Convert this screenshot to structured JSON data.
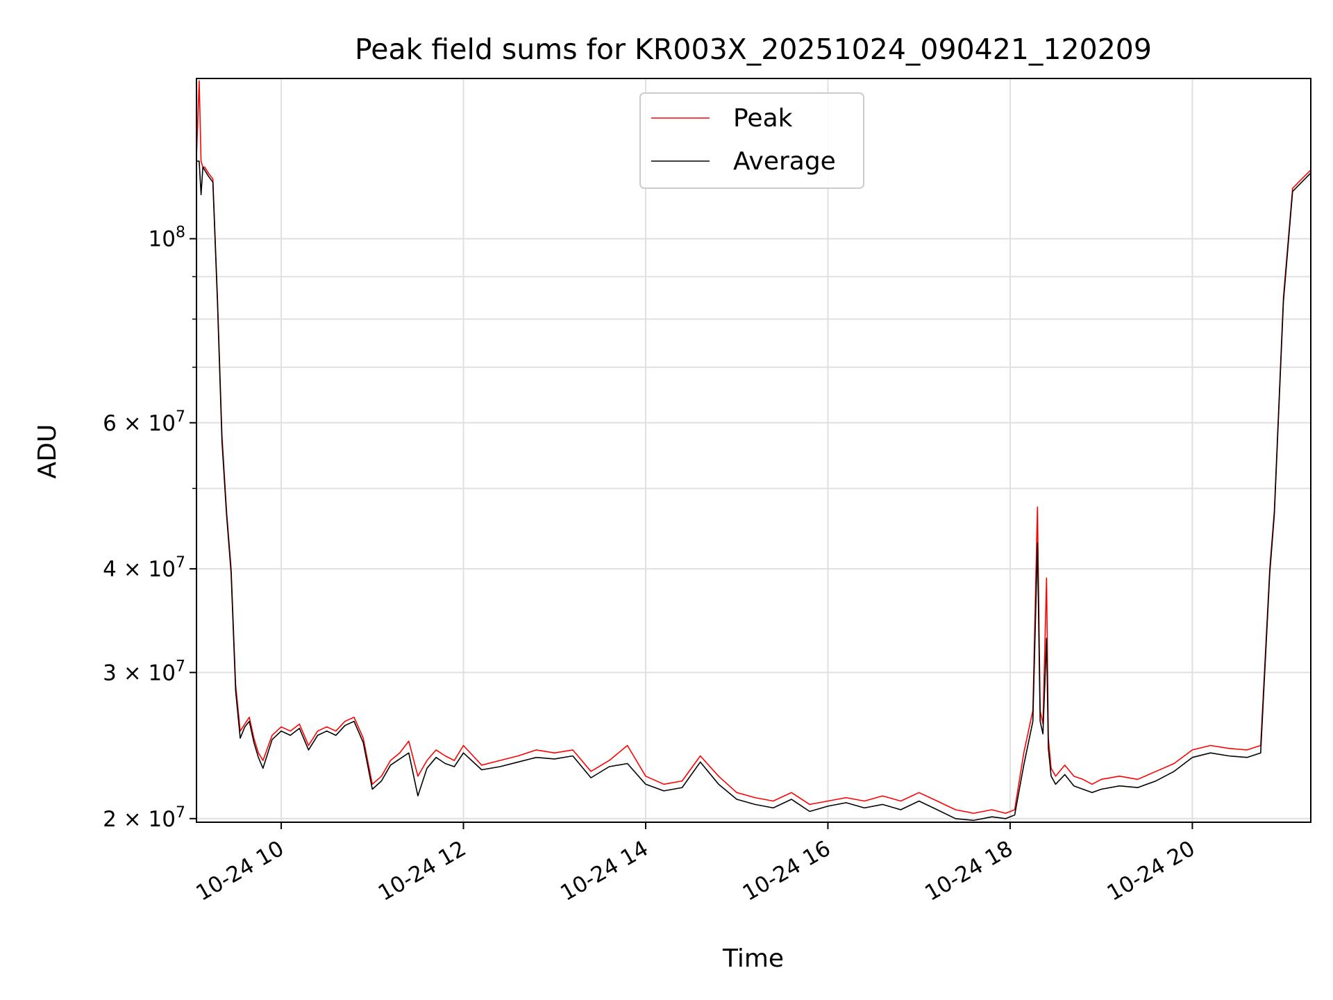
{
  "chart_data": {
    "type": "line",
    "title": "Peak field sums for KR003X_20251024_090421_120209",
    "xlabel": "Time",
    "ylabel": "ADU",
    "yscale": "log",
    "xlim_hours": [
      9.07,
      21.3
    ],
    "ylim": [
      19800000,
      156000000
    ],
    "grid": true,
    "legend_position": "upper center",
    "x_ticks": [
      {
        "hour": 10,
        "label": "10-24 10"
      },
      {
        "hour": 12,
        "label": "10-24 12"
      },
      {
        "hour": 14,
        "label": "10-24 14"
      },
      {
        "hour": 16,
        "label": "10-24 16"
      },
      {
        "hour": 18,
        "label": "10-24 18"
      },
      {
        "hour": 20,
        "label": "10-24 20"
      }
    ],
    "y_major_ticks": [
      {
        "value": 20000000,
        "mantissa": "2",
        "exp": "7"
      },
      {
        "value": 30000000,
        "mantissa": "3",
        "exp": "7"
      },
      {
        "value": 40000000,
        "mantissa": "4",
        "exp": "7"
      },
      {
        "value": 60000000,
        "mantissa": "6",
        "exp": "7"
      },
      {
        "value": 100000000,
        "mantissa": "",
        "exp": "8"
      }
    ],
    "y_minor_grid": [
      50000000,
      70000000,
      80000000,
      90000000
    ],
    "series": [
      {
        "name": "Peak",
        "color": "#ff0000",
        "x_hours": [
          9.07,
          9.1,
          9.12,
          9.14,
          9.16,
          9.2,
          9.25,
          9.3,
          9.35,
          9.4,
          9.45,
          9.5,
          9.55,
          9.6,
          9.65,
          9.7,
          9.75,
          9.8,
          9.9,
          10.0,
          10.1,
          10.2,
          10.3,
          10.4,
          10.5,
          10.6,
          10.7,
          10.8,
          10.9,
          11.0,
          11.1,
          11.2,
          11.3,
          11.4,
          11.5,
          11.6,
          11.7,
          11.8,
          11.9,
          12.0,
          12.2,
          12.4,
          12.6,
          12.8,
          13.0,
          13.2,
          13.4,
          13.6,
          13.8,
          14.0,
          14.2,
          14.4,
          14.6,
          14.8,
          15.0,
          15.2,
          15.4,
          15.6,
          15.8,
          16.0,
          16.2,
          16.4,
          16.6,
          16.8,
          17.0,
          17.2,
          17.4,
          17.6,
          17.8,
          17.95,
          18.05,
          18.15,
          18.25,
          18.3,
          18.33,
          18.36,
          18.4,
          18.42,
          18.45,
          18.5,
          18.6,
          18.7,
          18.8,
          18.9,
          19.0,
          19.2,
          19.4,
          19.6,
          19.8,
          20.0,
          20.2,
          20.4,
          20.6,
          20.75,
          20.85,
          20.9,
          21.0,
          21.1,
          21.2,
          21.3
        ],
        "values": [
          125000000,
          155000000,
          124000000,
          122000000,
          122000000,
          120000000,
          118000000,
          85000000,
          58000000,
          47000000,
          40000000,
          29000000,
          25500000,
          26000000,
          26500000,
          25000000,
          24000000,
          23500000,
          25200000,
          25800000,
          25500000,
          26000000,
          24500000,
          25500000,
          25800000,
          25500000,
          26200000,
          26500000,
          25000000,
          22000000,
          22500000,
          23500000,
          24000000,
          24800000,
          22500000,
          23500000,
          24200000,
          23800000,
          23500000,
          24500000,
          23200000,
          23500000,
          23800000,
          24200000,
          24000000,
          24200000,
          22800000,
          23500000,
          24500000,
          22500000,
          22000000,
          22200000,
          23800000,
          22500000,
          21500000,
          21200000,
          21000000,
          21500000,
          20800000,
          21000000,
          21200000,
          21000000,
          21300000,
          21000000,
          21500000,
          21000000,
          20500000,
          20300000,
          20500000,
          20300000,
          20500000,
          24000000,
          27000000,
          47500000,
          27000000,
          26000000,
          39000000,
          25000000,
          23000000,
          22500000,
          23200000,
          22500000,
          22300000,
          22000000,
          22300000,
          22500000,
          22300000,
          22800000,
          23300000,
          24200000,
          24500000,
          24300000,
          24200000,
          24500000,
          40000000,
          47000000,
          85000000,
          115000000,
          118000000,
          121000000
        ]
      },
      {
        "name": "Average",
        "color": "#000000",
        "x_hours": [
          9.07,
          9.1,
          9.12,
          9.14,
          9.16,
          9.2,
          9.25,
          9.3,
          9.35,
          9.4,
          9.45,
          9.5,
          9.55,
          9.6,
          9.65,
          9.7,
          9.75,
          9.8,
          9.9,
          10.0,
          10.1,
          10.2,
          10.3,
          10.4,
          10.5,
          10.6,
          10.7,
          10.8,
          10.9,
          11.0,
          11.1,
          11.2,
          11.3,
          11.4,
          11.5,
          11.6,
          11.7,
          11.8,
          11.9,
          12.0,
          12.2,
          12.4,
          12.6,
          12.8,
          13.0,
          13.2,
          13.4,
          13.6,
          13.8,
          14.0,
          14.2,
          14.4,
          14.6,
          14.8,
          15.0,
          15.2,
          15.4,
          15.6,
          15.8,
          16.0,
          16.2,
          16.4,
          16.6,
          16.8,
          17.0,
          17.2,
          17.4,
          17.6,
          17.8,
          17.95,
          18.05,
          18.15,
          18.25,
          18.3,
          18.33,
          18.36,
          18.4,
          18.42,
          18.45,
          18.5,
          18.6,
          18.7,
          18.8,
          18.9,
          19.0,
          19.2,
          19.4,
          19.6,
          19.8,
          20.0,
          20.2,
          20.4,
          20.6,
          20.75,
          20.85,
          20.9,
          21.0,
          21.1,
          21.2,
          21.3
        ],
        "values": [
          124000000,
          124000000,
          113000000,
          122000000,
          121000000,
          119000000,
          117000000,
          84000000,
          57000000,
          46500000,
          39500000,
          28500000,
          25000000,
          25800000,
          26200000,
          24700000,
          23700000,
          23000000,
          24900000,
          25500000,
          25200000,
          25700000,
          24200000,
          25200000,
          25500000,
          25200000,
          25900000,
          26200000,
          24700000,
          21700000,
          22200000,
          23200000,
          23600000,
          24000000,
          21300000,
          23000000,
          23700000,
          23300000,
          23100000,
          24000000,
          22900000,
          23100000,
          23400000,
          23700000,
          23600000,
          23800000,
          22400000,
          23100000,
          23300000,
          22000000,
          21600000,
          21800000,
          23400000,
          22000000,
          21100000,
          20800000,
          20600000,
          21100000,
          20400000,
          20700000,
          20900000,
          20600000,
          20800000,
          20500000,
          21000000,
          20500000,
          20000000,
          19900000,
          20100000,
          20000000,
          20200000,
          23200000,
          26200000,
          43000000,
          26200000,
          25300000,
          33000000,
          24300000,
          22500000,
          22000000,
          22600000,
          21900000,
          21700000,
          21500000,
          21700000,
          21900000,
          21800000,
          22200000,
          22800000,
          23700000,
          24000000,
          23800000,
          23700000,
          24000000,
          39500000,
          46500000,
          84000000,
          114000000,
          117000000,
          120000000
        ]
      }
    ]
  }
}
